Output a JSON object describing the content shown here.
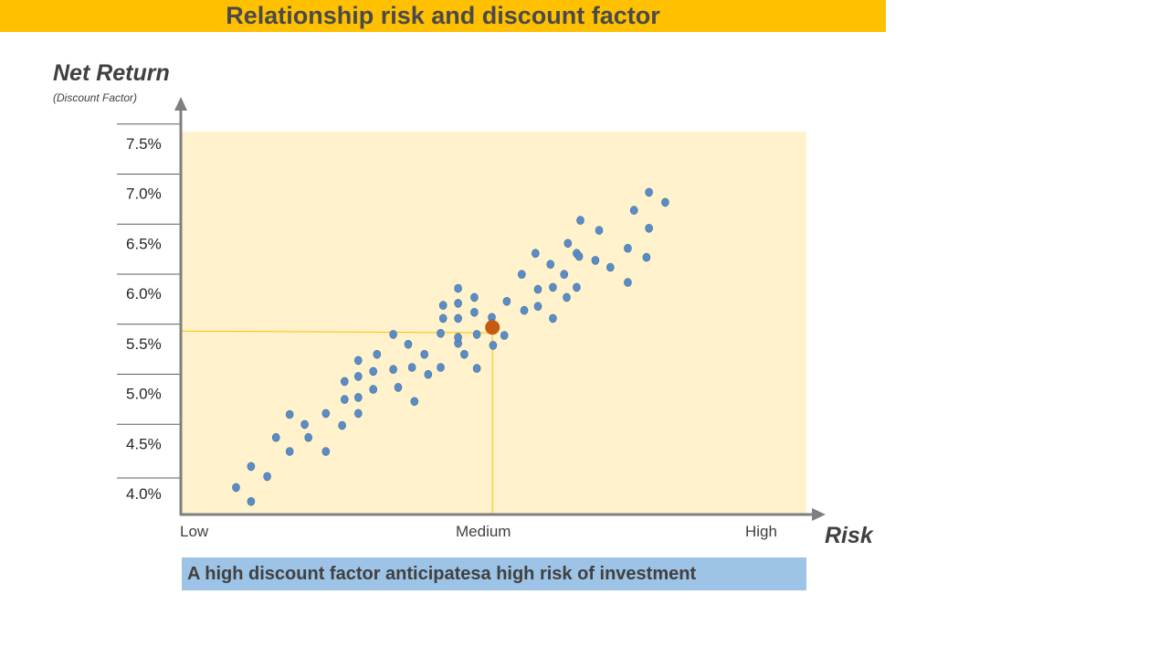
{
  "title": "Relationship risk and discount factor",
  "caption": "A high discount factor anticipatesa high risk of investment",
  "colors": {
    "title_bar": "#FFC000",
    "plot_bg": "#FFF2CC",
    "points": "#5B8DC4",
    "highlight_point": "#C55A11",
    "guide_lines": "#FFC000",
    "caption_bar": "#9DC3E6",
    "axis": "#7F7F7F"
  },
  "chart_data": {
    "type": "scatter",
    "ylabel": "Net Return",
    "ylabel_sub": "(Discount Factor)",
    "xlabel": "Risk",
    "x_categories": [
      "Low",
      "Medium",
      "High"
    ],
    "x_scale": "qualitative (0 = Low, 100 = High)",
    "y_ticks": [
      "4.0%",
      "4.5%",
      "5.0%",
      "5.5%",
      "6.0%",
      "6.5%",
      "7.0%",
      "7.5%"
    ],
    "ylim": [
      3.8,
      7.6
    ],
    "xlim": [
      0,
      100
    ],
    "grid": false,
    "legend": "none",
    "points": [
      [
        9.0,
        4.06
      ],
      [
        11.4,
        4.27
      ],
      [
        11.4,
        3.92
      ],
      [
        14.0,
        4.17
      ],
      [
        15.4,
        4.56
      ],
      [
        17.6,
        4.79
      ],
      [
        17.6,
        4.42
      ],
      [
        20.0,
        4.69
      ],
      [
        20.6,
        4.56
      ],
      [
        23.4,
        4.8
      ],
      [
        23.4,
        4.42
      ],
      [
        26.0,
        4.68
      ],
      [
        26.4,
        4.94
      ],
      [
        26.4,
        5.12
      ],
      [
        28.6,
        5.33
      ],
      [
        28.6,
        5.17
      ],
      [
        28.6,
        4.96
      ],
      [
        28.6,
        4.8
      ],
      [
        31.0,
        5.22
      ],
      [
        31.0,
        5.04
      ],
      [
        31.6,
        5.39
      ],
      [
        34.2,
        5.59
      ],
      [
        34.2,
        5.24
      ],
      [
        35.0,
        5.06
      ],
      [
        36.6,
        5.49
      ],
      [
        37.2,
        5.26
      ],
      [
        37.6,
        4.92
      ],
      [
        39.2,
        5.39
      ],
      [
        39.8,
        5.19
      ],
      [
        41.8,
        5.26
      ],
      [
        41.8,
        5.6
      ],
      [
        42.2,
        5.75
      ],
      [
        42.2,
        5.88
      ],
      [
        44.6,
        5.5
      ],
      [
        44.6,
        5.75
      ],
      [
        44.6,
        5.9
      ],
      [
        44.6,
        6.05
      ],
      [
        44.6,
        5.56
      ],
      [
        45.6,
        5.39
      ],
      [
        47.2,
        5.96
      ],
      [
        47.2,
        5.81
      ],
      [
        47.6,
        5.25
      ],
      [
        47.6,
        5.59
      ],
      [
        50.0,
        5.76
      ],
      [
        50.0,
        5.7
      ],
      [
        50.2,
        5.48
      ],
      [
        52.0,
        5.58
      ],
      [
        52.4,
        5.92
      ],
      [
        54.8,
        6.19
      ],
      [
        55.2,
        5.83
      ],
      [
        57.0,
        6.4
      ],
      [
        57.4,
        6.04
      ],
      [
        57.4,
        5.87
      ],
      [
        59.4,
        6.29
      ],
      [
        59.8,
        6.06
      ],
      [
        59.8,
        5.75
      ],
      [
        61.6,
        6.19
      ],
      [
        62.0,
        5.96
      ],
      [
        62.2,
        6.5
      ],
      [
        63.6,
        6.06
      ],
      [
        63.6,
        6.4
      ],
      [
        64.0,
        6.37
      ],
      [
        64.2,
        6.73
      ],
      [
        66.6,
        6.33
      ],
      [
        67.2,
        6.63
      ],
      [
        69.0,
        6.26
      ],
      [
        71.8,
        6.45
      ],
      [
        71.8,
        6.11
      ],
      [
        72.8,
        6.83
      ],
      [
        74.8,
        6.36
      ],
      [
        75.2,
        6.65
      ],
      [
        75.2,
        7.01
      ],
      [
        77.8,
        6.91
      ]
    ],
    "highlight": {
      "x": 50.1,
      "y": 5.66
    },
    "guide": {
      "x": 50.1,
      "y": 5.66
    }
  }
}
